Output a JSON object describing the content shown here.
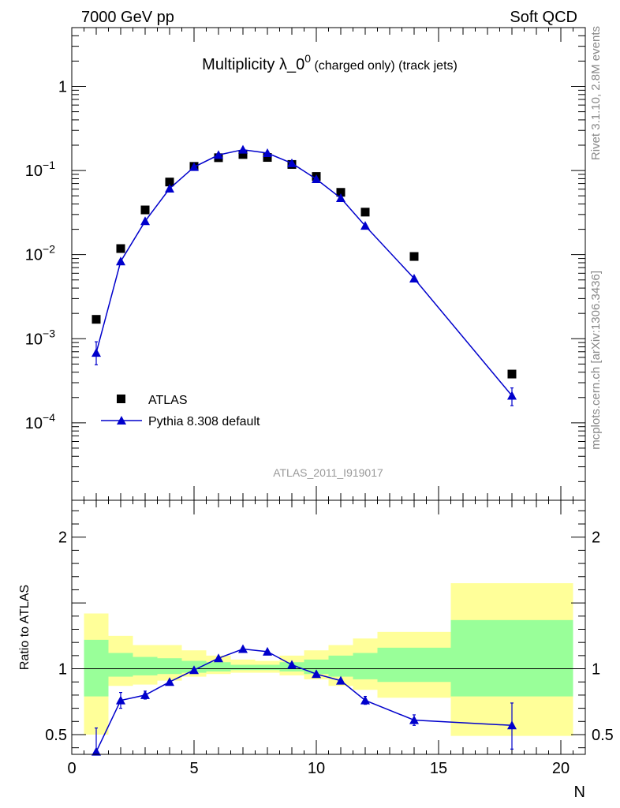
{
  "header": {
    "left": "7000 GeV pp",
    "right": "Soft QCD"
  },
  "side_labels": {
    "rivet": "Rivet 3.1.10,  2.8M events",
    "mcplots": "mcplots.cern.ch [arXiv:1306.3436]"
  },
  "chart_data": [
    {
      "type": "scatter",
      "title_main": "Multiplicity λ_0",
      "title_sup": "0",
      "title_tail": " (charged only) (track jets)",
      "watermark": "ATLAS_2011_I919017",
      "xlabel": "N",
      "ylabel": "",
      "xlim": [
        0,
        21
      ],
      "ylim": [
        1.2e-05,
        5
      ],
      "yscale": "log",
      "ytick_labels": {
        "1": "1",
        "0.1": "10",
        "0.01": "10",
        "0.001": "10",
        "0.0001": "10"
      },
      "ytick_exponents": {
        "0.1": "−1",
        "0.01": "−2",
        "0.001": "−3",
        "0.0001": "−4"
      },
      "legend_position": "bottom-left",
      "series": [
        {
          "name": "ATLAS",
          "color": "#000000",
          "marker": "square",
          "x": [
            1,
            2,
            3,
            4,
            5,
            6,
            7,
            8,
            9,
            10,
            11,
            12,
            14,
            18
          ],
          "y": [
            0.0017,
            0.0118,
            0.034,
            0.073,
            0.112,
            0.142,
            0.155,
            0.143,
            0.118,
            0.085,
            0.055,
            0.032,
            0.0095,
            0.00038
          ]
        },
        {
          "name": "Pythia 8.308 default",
          "color": "#0000cc",
          "marker": "triangle",
          "line": true,
          "x": [
            1,
            2,
            3,
            4,
            5,
            6,
            7,
            8,
            9,
            10,
            11,
            12,
            14,
            18
          ],
          "y": [
            0.00068,
            0.0083,
            0.025,
            0.061,
            0.11,
            0.153,
            0.177,
            0.161,
            0.122,
            0.079,
            0.047,
            0.022,
            0.0052,
            0.00021
          ],
          "yerr_low": [
            0.00019,
            0.0005,
            0.001,
            0.002,
            0.002,
            0.002,
            0.002,
            0.002,
            0.002,
            0.002,
            0.002,
            0.001,
            0.0003,
            5e-05
          ],
          "yerr_high": [
            0.00024,
            0.0005,
            0.001,
            0.002,
            0.002,
            0.002,
            0.002,
            0.002,
            0.002,
            0.002,
            0.002,
            0.001,
            0.0003,
            5e-05
          ]
        }
      ]
    },
    {
      "type": "scatter",
      "xlabel": "N",
      "ylabel": "Ratio to ATLAS",
      "xlim": [
        0,
        21
      ],
      "ylim": [
        0.35,
        2.28
      ],
      "xticks": [
        0,
        5,
        10,
        15,
        20
      ],
      "xtick_labels": [
        "0",
        "5",
        "10",
        "15",
        "20"
      ],
      "yticks": [
        0.5,
        1,
        2
      ],
      "ytick_labels": [
        "0.5",
        "1",
        "2"
      ],
      "reference_line": 1,
      "bands": [
        {
          "x0": 0.5,
          "x1": 1.5,
          "yellow": [
            0.5,
            1.42
          ],
          "green": [
            0.79,
            1.22
          ]
        },
        {
          "x0": 1.5,
          "x1": 2.5,
          "yellow": [
            0.87,
            1.25
          ],
          "green": [
            0.94,
            1.12
          ]
        },
        {
          "x0": 2.5,
          "x1": 3.5,
          "yellow": [
            0.88,
            1.18
          ],
          "green": [
            0.95,
            1.09
          ]
        },
        {
          "x0": 3.5,
          "x1": 4.5,
          "yellow": [
            0.91,
            1.18
          ],
          "green": [
            0.96,
            1.08
          ]
        },
        {
          "x0": 4.5,
          "x1": 5.5,
          "yellow": [
            0.94,
            1.14
          ],
          "green": [
            0.97,
            1.06
          ]
        },
        {
          "x0": 5.5,
          "x1": 6.5,
          "yellow": [
            0.96,
            1.1
          ],
          "green": [
            0.98,
            1.05
          ]
        },
        {
          "x0": 6.5,
          "x1": 7.5,
          "yellow": [
            0.97,
            1.07
          ],
          "green": [
            0.99,
            1.03
          ]
        },
        {
          "x0": 7.5,
          "x1": 8.5,
          "yellow": [
            0.97,
            1.06
          ],
          "green": [
            0.99,
            1.03
          ]
        },
        {
          "x0": 8.5,
          "x1": 9.5,
          "yellow": [
            0.95,
            1.1
          ],
          "green": [
            0.98,
            1.05
          ]
        },
        {
          "x0": 9.5,
          "x1": 10.5,
          "yellow": [
            0.92,
            1.14
          ],
          "green": [
            0.96,
            1.07
          ]
        },
        {
          "x0": 10.5,
          "x1": 11.5,
          "yellow": [
            0.87,
            1.18
          ],
          "green": [
            0.94,
            1.1
          ]
        },
        {
          "x0": 11.5,
          "x1": 12.5,
          "yellow": [
            0.84,
            1.23
          ],
          "green": [
            0.92,
            1.12
          ]
        },
        {
          "x0": 12.5,
          "x1": 15.5,
          "yellow": [
            0.78,
            1.28
          ],
          "green": [
            0.9,
            1.16
          ]
        },
        {
          "x0": 15.5,
          "x1": 20.5,
          "yellow": [
            0.49,
            1.65
          ],
          "green": [
            0.79,
            1.37
          ]
        }
      ],
      "series": [
        {
          "name": "Pythia 8.308 default",
          "color": "#0000cc",
          "marker": "triangle",
          "line": true,
          "x": [
            1,
            2,
            3,
            4,
            5,
            6,
            7,
            8,
            9,
            10,
            11,
            12,
            14,
            18
          ],
          "y": [
            0.37,
            0.76,
            0.8,
            0.9,
            0.99,
            1.08,
            1.15,
            1.13,
            1.03,
            0.96,
            0.91,
            0.76,
            0.61,
            0.57
          ],
          "yerr_low": [
            0.1,
            0.06,
            0.03,
            0.02,
            0.01,
            0.01,
            0.01,
            0.01,
            0.01,
            0.01,
            0.02,
            0.03,
            0.04,
            0.18
          ],
          "yerr_high": [
            0.18,
            0.06,
            0.03,
            0.02,
            0.01,
            0.01,
            0.01,
            0.01,
            0.01,
            0.01,
            0.02,
            0.03,
            0.04,
            0.17
          ]
        }
      ]
    }
  ]
}
